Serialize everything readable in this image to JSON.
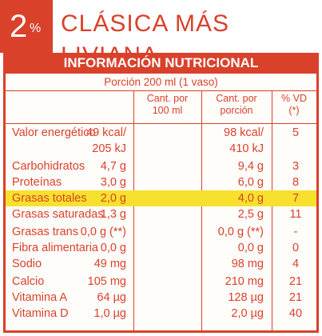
{
  "badge": {
    "number": "2",
    "percent": "%"
  },
  "product_name": "CLÁSICA MÁS LIVIANA",
  "table": {
    "title": "INFORMACIÓN NUTRICIONAL",
    "serving": "Porción 200 ml (1 vaso)",
    "headers": {
      "per100": [
        "Cant. por",
        "100 ml"
      ],
      "portion": [
        "Cant. por",
        "porción"
      ],
      "vd": [
        "% VD",
        "(*)"
      ]
    },
    "rows": [
      {
        "name": "Valor energético",
        "per100": "49 kcal/",
        "portion": "98 kcal/",
        "vd": "5",
        "highlight": false
      },
      {
        "name": "",
        "per100": "205 kJ",
        "portion": "410 kJ",
        "vd": "",
        "highlight": false
      },
      {
        "name": "Carbohidratos",
        "per100": "4,7 g",
        "portion": "9,4 g",
        "vd": "3",
        "highlight": false
      },
      {
        "name": "Proteínas",
        "per100": "3,0 g",
        "portion": "6,0 g",
        "vd": "8",
        "highlight": false
      },
      {
        "name": "Grasas totales",
        "per100": "2,0 g",
        "portion": "4,0 g",
        "vd": "7",
        "highlight": true
      },
      {
        "name": "Grasas saturadas",
        "per100": "1,3 g",
        "portion": "2,5 g",
        "vd": "11",
        "highlight": false
      },
      {
        "name": "Grasas trans",
        "per100": "0,0 g (**)",
        "portion": "0,0 g (**)",
        "vd": "-",
        "highlight": false
      },
      {
        "name": "Fibra alimentaria",
        "per100": "0,0 g",
        "portion": "0,0 g",
        "vd": "0",
        "highlight": false
      },
      {
        "name": "Sodio",
        "per100": "49 mg",
        "portion": "98 mg",
        "vd": "4",
        "highlight": false
      },
      {
        "name": "Calcio",
        "per100": "105 mg",
        "portion": "210 mg",
        "vd": "21",
        "highlight": false
      },
      {
        "name": "Vitamina A",
        "per100": "64 µg",
        "portion": "128 µg",
        "vd": "21",
        "highlight": false
      },
      {
        "name": "Vitamina D",
        "per100": "1,0 µg",
        "portion": "2,0 µg",
        "vd": "40",
        "highlight": false
      }
    ]
  },
  "colors": {
    "accent": "#d9412b",
    "highlight": "#f7e12e"
  }
}
